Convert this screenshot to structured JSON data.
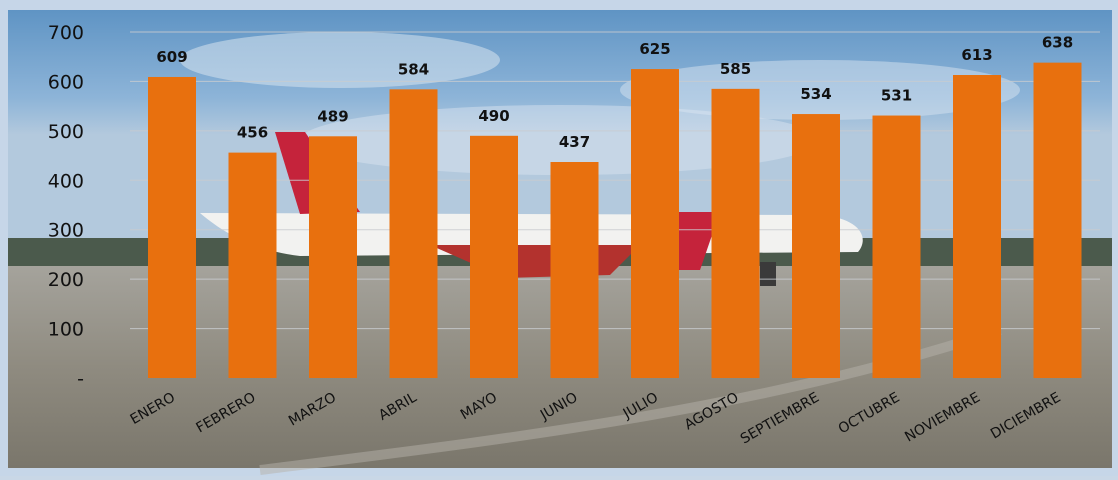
{
  "chart_data": {
    "type": "bar",
    "title": "",
    "xlabel": "",
    "ylabel": "",
    "categories": [
      "ENERO",
      "FEBRERO",
      "MARZO",
      "ABRIL",
      "MAYO",
      "JUNIO",
      "JULIO",
      "AGOSTO",
      "SEPTIEMBRE",
      "OCTUBRE",
      "NOVIEMBRE",
      "DICIEMBRE"
    ],
    "values": [
      609,
      456,
      489,
      584,
      490,
      437,
      625,
      585,
      534,
      531,
      613,
      638
    ],
    "ylim": [
      0,
      700
    ],
    "yticks": [
      "-",
      "100",
      "200",
      "300",
      "400",
      "500",
      "600",
      "700"
    ],
    "grid": true,
    "bar_color": "#e8700e",
    "background": "photo of a red-and-white passenger airplane on an airport apron under a blue sky"
  }
}
